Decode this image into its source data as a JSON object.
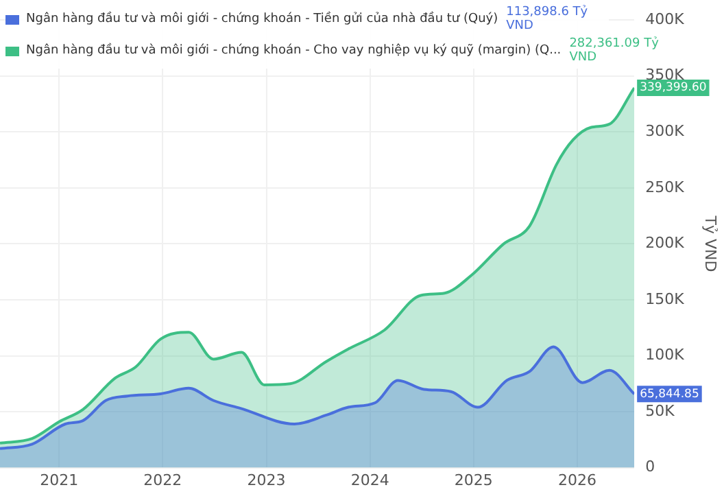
{
  "chart_data": {
    "type": "area",
    "ylabel": "Tỷ VND",
    "legend": "top left",
    "grid": true,
    "xlim": [
      2020.43,
      2026.55
    ],
    "xticks": [
      2021,
      2022,
      2023,
      2024,
      2025,
      2026
    ],
    "ylim": [
      0,
      400000
    ],
    "yticks": [
      {
        "value": 0,
        "label": "0"
      },
      {
        "value": 50000,
        "label": "50K"
      },
      {
        "value": 100000,
        "label": "100K"
      },
      {
        "value": 150000,
        "label": "150K"
      },
      {
        "value": 200000,
        "label": "200K"
      },
      {
        "value": 250000,
        "label": "250K"
      },
      {
        "value": 300000,
        "label": "300K"
      },
      {
        "value": 350000,
        "label": "350K"
      },
      {
        "value": 400000,
        "label": "400K"
      }
    ],
    "annotations": [
      "113,898.6 Tỷ VND",
      "282,361.09 Tỷ VND"
    ],
    "series": [
      {
        "name": "Ngân hàng đầu tư và môi giới - chứng khoán - Tiền gửi của nhà đầu tư (Quý)",
        "color": "#4a6fdc",
        "x": [
          2020.43,
          2020.74,
          2021.06,
          2021.23,
          2021.45,
          2021.66,
          2021.98,
          2022.25,
          2022.49,
          2022.75,
          2023.27,
          2023.58,
          2023.79,
          2024.05,
          2024.27,
          2024.52,
          2024.78,
          2025.04,
          2025.32,
          2025.54,
          2025.77,
          2026.05,
          2026.31,
          2026.55
        ],
        "values": [
          17000,
          21000,
          39000,
          42000,
          60000,
          64000,
          66000,
          71000,
          60000,
          53000,
          39000,
          47000,
          54000,
          58000,
          78000,
          70000,
          68000,
          54000,
          78000,
          86000,
          108000,
          76000,
          87000,
          65844.85
        ],
        "value_labels": [
          null,
          null,
          null,
          null,
          null,
          null,
          null,
          null,
          null,
          null,
          null,
          null,
          null,
          null,
          null,
          null,
          null,
          null,
          null,
          null,
          null,
          null,
          null,
          "65,844.85"
        ]
      },
      {
        "name": "Ngân hàng đầu tư và môi giới - chứng khoán - Cho vay nghiệp vụ ký quỹ (margin) (Q...",
        "color": "#3dbf85",
        "x": [
          2020.43,
          2020.74,
          2021.0,
          2021.23,
          2021.54,
          2021.74,
          2021.98,
          2022.25,
          2022.49,
          2022.76,
          2022.98,
          2023.23,
          2023.58,
          2023.79,
          2024.14,
          2024.49,
          2024.72,
          2024.98,
          2025.29,
          2025.54,
          2025.8,
          2025.96,
          2026.13,
          2026.31,
          2026.55
        ],
        "values": [
          22000,
          26000,
          41000,
          52000,
          80000,
          90000,
          115000,
          121000,
          97000,
          103000,
          74000,
          75000,
          95000,
          106000,
          123000,
          154000,
          156000,
          172000,
          200000,
          216000,
          271000,
          293000,
          304000,
          307000,
          339399.6
        ],
        "value_labels": [
          null,
          null,
          null,
          null,
          null,
          null,
          null,
          null,
          null,
          null,
          null,
          null,
          null,
          null,
          null,
          null,
          null,
          null,
          null,
          null,
          null,
          null,
          null,
          null,
          "339,399.60"
        ]
      }
    ]
  }
}
